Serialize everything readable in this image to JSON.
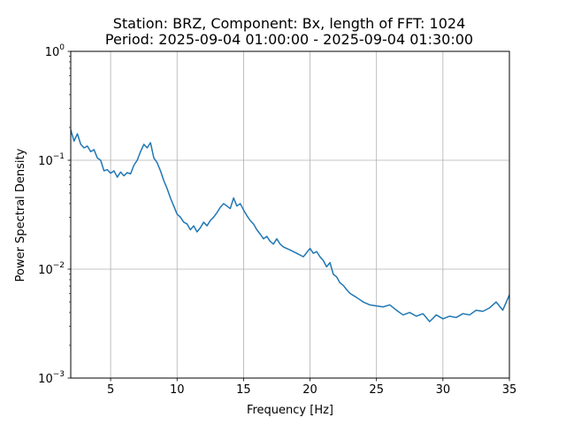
{
  "chart_data": {
    "type": "line",
    "title": "Station: BRZ, Component: Bx, length of FFT: 1024",
    "subtitle": "Period: 2025-09-04 01:00:00 - 2025-09-04 01:30:00",
    "xlabel": "Frequency [Hz]",
    "ylabel": "Power Spectral Density",
    "xlim": [
      2,
      35
    ],
    "ylim": [
      0.001,
      1
    ],
    "yscale": "log",
    "grid": true,
    "x_ticks": [
      5,
      10,
      15,
      20,
      25,
      30,
      35
    ],
    "x_tick_labels": [
      "5",
      "10",
      "15",
      "20",
      "25",
      "30",
      "35"
    ],
    "y_ticks": [
      0.001,
      0.01,
      0.1,
      1
    ],
    "y_tick_labels": [
      {
        "base": "10",
        "exp": "−3"
      },
      {
        "base": "10",
        "exp": "−2"
      },
      {
        "base": "10",
        "exp": "−1"
      },
      {
        "base": "10",
        "exp": "0"
      }
    ],
    "series": [
      {
        "color": "#1f77b4",
        "x": [
          2.0,
          2.25,
          2.5,
          2.75,
          3.0,
          3.25,
          3.5,
          3.75,
          4.0,
          4.25,
          4.5,
          4.75,
          5.0,
          5.25,
          5.5,
          5.75,
          6.0,
          6.25,
          6.5,
          6.75,
          7.0,
          7.25,
          7.5,
          7.75,
          8.0,
          8.25,
          8.5,
          8.75,
          9.0,
          9.25,
          9.5,
          9.75,
          10.0,
          10.25,
          10.5,
          10.75,
          11.0,
          11.25,
          11.5,
          11.75,
          12.0,
          12.25,
          12.5,
          12.75,
          13.0,
          13.25,
          13.5,
          13.75,
          14.0,
          14.25,
          14.5,
          14.75,
          15.0,
          15.25,
          15.5,
          15.75,
          16.0,
          16.25,
          16.5,
          16.75,
          17.0,
          17.25,
          17.5,
          17.75,
          18.0,
          18.5,
          19.0,
          19.5,
          20.0,
          20.25,
          20.5,
          20.75,
          21.0,
          21.25,
          21.5,
          21.75,
          22.0,
          22.25,
          22.5,
          22.75,
          23.0,
          23.5,
          24.0,
          24.5,
          25.0,
          25.5,
          26.0,
          26.5,
          27.0,
          27.5,
          28.0,
          28.5,
          29.0,
          29.5,
          30.0,
          30.5,
          31.0,
          31.5,
          32.0,
          32.5,
          33.0,
          33.5,
          34.0,
          34.5,
          35.0
        ],
        "y": [
          0.19,
          0.15,
          0.175,
          0.14,
          0.13,
          0.135,
          0.12,
          0.125,
          0.105,
          0.1,
          0.08,
          0.082,
          0.076,
          0.08,
          0.07,
          0.078,
          0.072,
          0.077,
          0.075,
          0.09,
          0.1,
          0.12,
          0.14,
          0.13,
          0.145,
          0.105,
          0.095,
          0.08,
          0.065,
          0.055,
          0.045,
          0.038,
          0.032,
          0.03,
          0.027,
          0.026,
          0.023,
          0.025,
          0.022,
          0.024,
          0.027,
          0.025,
          0.028,
          0.03,
          0.033,
          0.037,
          0.04,
          0.038,
          0.036,
          0.045,
          0.038,
          0.04,
          0.035,
          0.031,
          0.028,
          0.026,
          0.023,
          0.021,
          0.019,
          0.02,
          0.018,
          0.017,
          0.019,
          0.017,
          0.016,
          0.015,
          0.014,
          0.013,
          0.0155,
          0.014,
          0.0145,
          0.013,
          0.012,
          0.0105,
          0.0115,
          0.009,
          0.0085,
          0.0075,
          0.0071,
          0.0065,
          0.006,
          0.0055,
          0.005,
          0.0047,
          0.0046,
          0.0045,
          0.0047,
          0.0042,
          0.0038,
          0.004,
          0.0037,
          0.0039,
          0.0033,
          0.0038,
          0.0035,
          0.0037,
          0.0036,
          0.0039,
          0.0038,
          0.0042,
          0.0041,
          0.0044,
          0.005,
          0.0042,
          0.0058
        ]
      }
    ]
  }
}
